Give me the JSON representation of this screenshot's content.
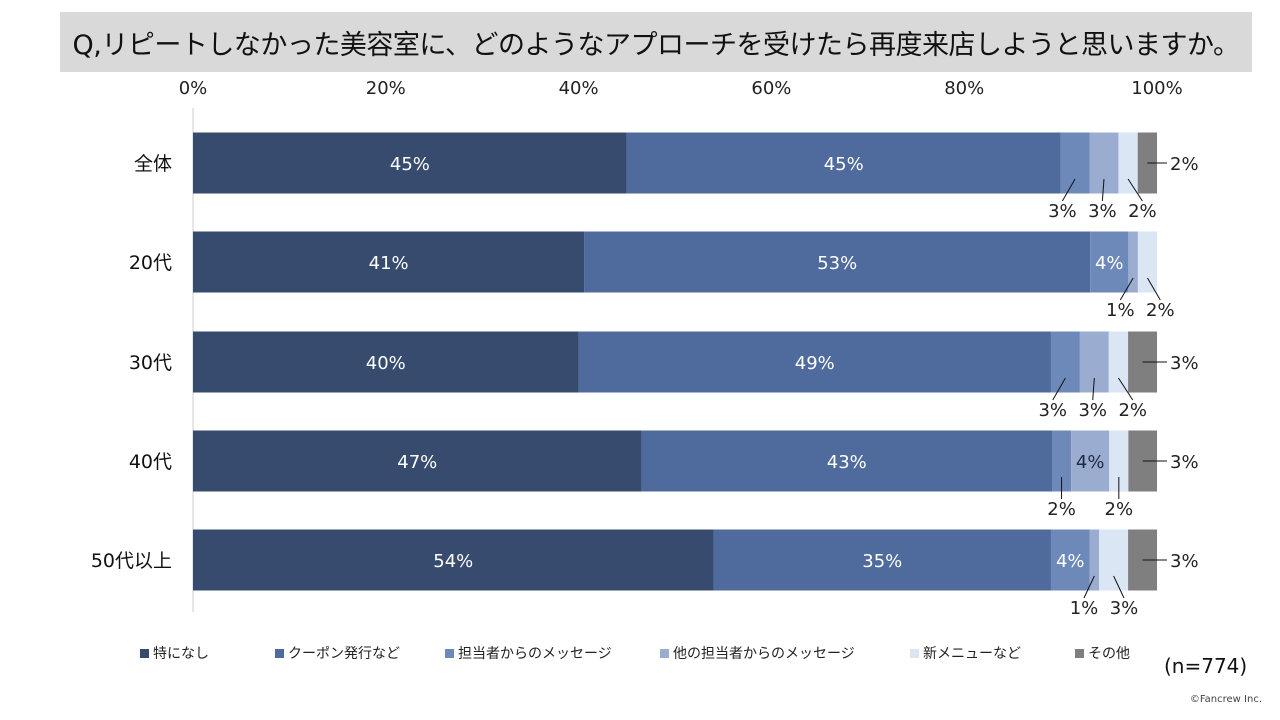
{
  "title": "Q,リピートしなかった美容室に、どのようなアプローチを受けたら再度来店しようと思いますか。",
  "sample_size": "(n=774)",
  "copyright": "©Fancrew Inc.",
  "chart_data": {
    "type": "bar",
    "orientation": "horizontal",
    "stacked": "100%",
    "title": "Q,リピートしなかった美容室に、どのようなアプローチを受けたら再度来店しようと思いますか。",
    "xlim": [
      0,
      100
    ],
    "x_ticks": [
      "0%",
      "20%",
      "40%",
      "60%",
      "80%",
      "100%"
    ],
    "categories": [
      "全体",
      "20代",
      "30代",
      "40代",
      "50代以上"
    ],
    "legend_position": "bottom",
    "series": [
      {
        "name": "特になし",
        "color": "#364b6d",
        "values": [
          45,
          41,
          40,
          47,
          54
        ]
      },
      {
        "name": "クーポン発行など",
        "color": "#4f6a9c",
        "values": [
          45,
          53,
          49,
          43,
          35
        ]
      },
      {
        "name": "担当者からのメッセージ",
        "color": "#6d89ba",
        "values": [
          3,
          4,
          3,
          2,
          4
        ]
      },
      {
        "name": "他の担当者からのメッセージ",
        "color": "#9aaccf",
        "values": [
          3,
          1,
          3,
          4,
          1
        ]
      },
      {
        "name": "新メニューなど",
        "color": "#dbe6f5",
        "values": [
          2,
          2,
          2,
          2,
          3
        ]
      },
      {
        "name": "その他",
        "color": "#7f7f7f",
        "values": [
          2,
          0,
          3,
          3,
          3
        ]
      }
    ]
  }
}
